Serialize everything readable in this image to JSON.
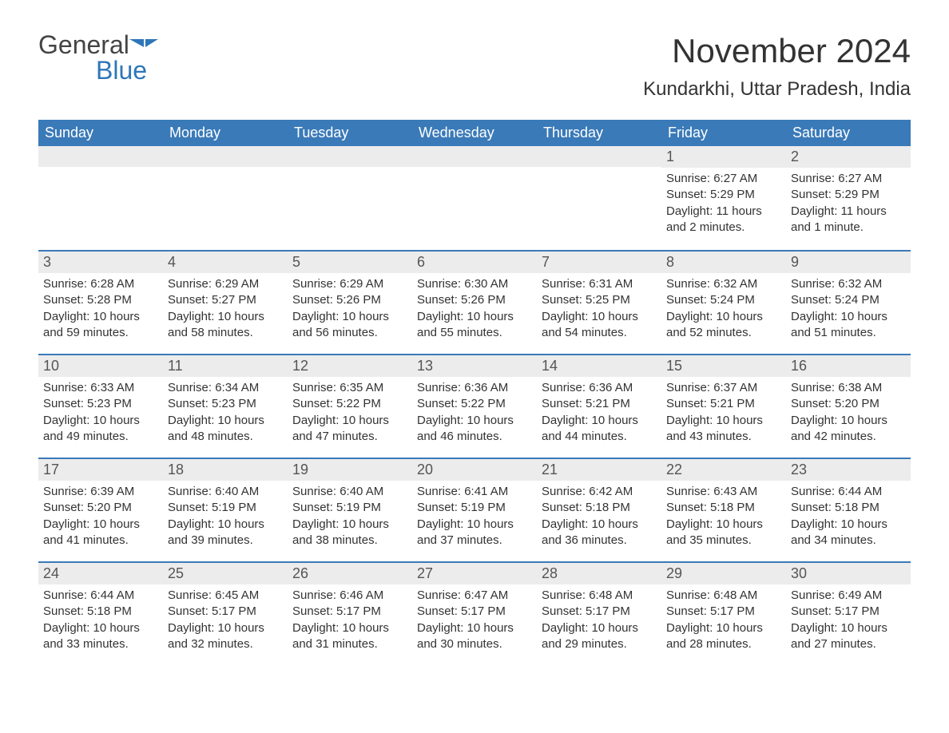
{
  "logo": {
    "text1": "General",
    "text2": "Blue"
  },
  "title": "November 2024",
  "location": "Kundarkhi, Uttar Pradesh, India",
  "colors": {
    "header_bg": "#3a7ab8",
    "header_text": "#ffffff",
    "strip_bg": "#ececec",
    "border": "#3a7ab8",
    "body_text": "#333333",
    "logo_blue": "#2f76b8"
  },
  "day_headers": [
    "Sunday",
    "Monday",
    "Tuesday",
    "Wednesday",
    "Thursday",
    "Friday",
    "Saturday"
  ],
  "weeks": [
    [
      {
        "empty": true
      },
      {
        "empty": true
      },
      {
        "empty": true
      },
      {
        "empty": true
      },
      {
        "empty": true
      },
      {
        "day": "1",
        "sunrise": "Sunrise: 6:27 AM",
        "sunset": "Sunset: 5:29 PM",
        "daylight": "Daylight: 11 hours and 2 minutes."
      },
      {
        "day": "2",
        "sunrise": "Sunrise: 6:27 AM",
        "sunset": "Sunset: 5:29 PM",
        "daylight": "Daylight: 11 hours and 1 minute."
      }
    ],
    [
      {
        "day": "3",
        "sunrise": "Sunrise: 6:28 AM",
        "sunset": "Sunset: 5:28 PM",
        "daylight": "Daylight: 10 hours and 59 minutes."
      },
      {
        "day": "4",
        "sunrise": "Sunrise: 6:29 AM",
        "sunset": "Sunset: 5:27 PM",
        "daylight": "Daylight: 10 hours and 58 minutes."
      },
      {
        "day": "5",
        "sunrise": "Sunrise: 6:29 AM",
        "sunset": "Sunset: 5:26 PM",
        "daylight": "Daylight: 10 hours and 56 minutes."
      },
      {
        "day": "6",
        "sunrise": "Sunrise: 6:30 AM",
        "sunset": "Sunset: 5:26 PM",
        "daylight": "Daylight: 10 hours and 55 minutes."
      },
      {
        "day": "7",
        "sunrise": "Sunrise: 6:31 AM",
        "sunset": "Sunset: 5:25 PM",
        "daylight": "Daylight: 10 hours and 54 minutes."
      },
      {
        "day": "8",
        "sunrise": "Sunrise: 6:32 AM",
        "sunset": "Sunset: 5:24 PM",
        "daylight": "Daylight: 10 hours and 52 minutes."
      },
      {
        "day": "9",
        "sunrise": "Sunrise: 6:32 AM",
        "sunset": "Sunset: 5:24 PM",
        "daylight": "Daylight: 10 hours and 51 minutes."
      }
    ],
    [
      {
        "day": "10",
        "sunrise": "Sunrise: 6:33 AM",
        "sunset": "Sunset: 5:23 PM",
        "daylight": "Daylight: 10 hours and 49 minutes."
      },
      {
        "day": "11",
        "sunrise": "Sunrise: 6:34 AM",
        "sunset": "Sunset: 5:23 PM",
        "daylight": "Daylight: 10 hours and 48 minutes."
      },
      {
        "day": "12",
        "sunrise": "Sunrise: 6:35 AM",
        "sunset": "Sunset: 5:22 PM",
        "daylight": "Daylight: 10 hours and 47 minutes."
      },
      {
        "day": "13",
        "sunrise": "Sunrise: 6:36 AM",
        "sunset": "Sunset: 5:22 PM",
        "daylight": "Daylight: 10 hours and 46 minutes."
      },
      {
        "day": "14",
        "sunrise": "Sunrise: 6:36 AM",
        "sunset": "Sunset: 5:21 PM",
        "daylight": "Daylight: 10 hours and 44 minutes."
      },
      {
        "day": "15",
        "sunrise": "Sunrise: 6:37 AM",
        "sunset": "Sunset: 5:21 PM",
        "daylight": "Daylight: 10 hours and 43 minutes."
      },
      {
        "day": "16",
        "sunrise": "Sunrise: 6:38 AM",
        "sunset": "Sunset: 5:20 PM",
        "daylight": "Daylight: 10 hours and 42 minutes."
      }
    ],
    [
      {
        "day": "17",
        "sunrise": "Sunrise: 6:39 AM",
        "sunset": "Sunset: 5:20 PM",
        "daylight": "Daylight: 10 hours and 41 minutes."
      },
      {
        "day": "18",
        "sunrise": "Sunrise: 6:40 AM",
        "sunset": "Sunset: 5:19 PM",
        "daylight": "Daylight: 10 hours and 39 minutes."
      },
      {
        "day": "19",
        "sunrise": "Sunrise: 6:40 AM",
        "sunset": "Sunset: 5:19 PM",
        "daylight": "Daylight: 10 hours and 38 minutes."
      },
      {
        "day": "20",
        "sunrise": "Sunrise: 6:41 AM",
        "sunset": "Sunset: 5:19 PM",
        "daylight": "Daylight: 10 hours and 37 minutes."
      },
      {
        "day": "21",
        "sunrise": "Sunrise: 6:42 AM",
        "sunset": "Sunset: 5:18 PM",
        "daylight": "Daylight: 10 hours and 36 minutes."
      },
      {
        "day": "22",
        "sunrise": "Sunrise: 6:43 AM",
        "sunset": "Sunset: 5:18 PM",
        "daylight": "Daylight: 10 hours and 35 minutes."
      },
      {
        "day": "23",
        "sunrise": "Sunrise: 6:44 AM",
        "sunset": "Sunset: 5:18 PM",
        "daylight": "Daylight: 10 hours and 34 minutes."
      }
    ],
    [
      {
        "day": "24",
        "sunrise": "Sunrise: 6:44 AM",
        "sunset": "Sunset: 5:18 PM",
        "daylight": "Daylight: 10 hours and 33 minutes."
      },
      {
        "day": "25",
        "sunrise": "Sunrise: 6:45 AM",
        "sunset": "Sunset: 5:17 PM",
        "daylight": "Daylight: 10 hours and 32 minutes."
      },
      {
        "day": "26",
        "sunrise": "Sunrise: 6:46 AM",
        "sunset": "Sunset: 5:17 PM",
        "daylight": "Daylight: 10 hours and 31 minutes."
      },
      {
        "day": "27",
        "sunrise": "Sunrise: 6:47 AM",
        "sunset": "Sunset: 5:17 PM",
        "daylight": "Daylight: 10 hours and 30 minutes."
      },
      {
        "day": "28",
        "sunrise": "Sunrise: 6:48 AM",
        "sunset": "Sunset: 5:17 PM",
        "daylight": "Daylight: 10 hours and 29 minutes."
      },
      {
        "day": "29",
        "sunrise": "Sunrise: 6:48 AM",
        "sunset": "Sunset: 5:17 PM",
        "daylight": "Daylight: 10 hours and 28 minutes."
      },
      {
        "day": "30",
        "sunrise": "Sunrise: 6:49 AM",
        "sunset": "Sunset: 5:17 PM",
        "daylight": "Daylight: 10 hours and 27 minutes."
      }
    ]
  ]
}
